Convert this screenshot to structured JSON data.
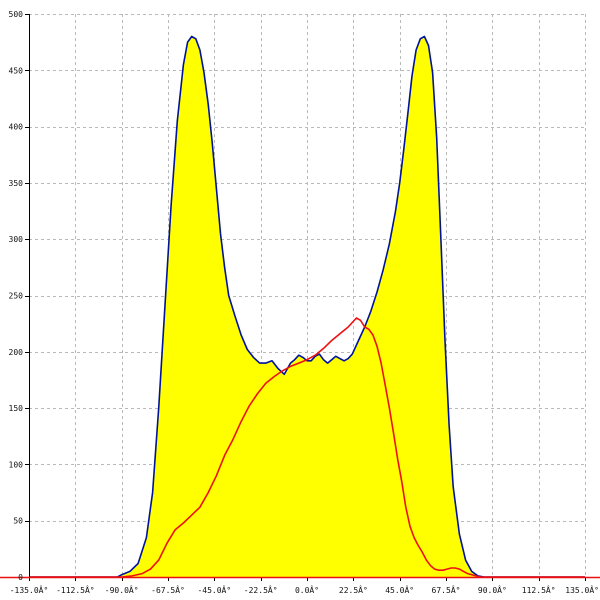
{
  "chart_data": {
    "type": "area",
    "title": "",
    "xlabel": "",
    "ylabel": "",
    "xlim": [
      -135,
      135
    ],
    "ylim": [
      0,
      500
    ],
    "grid": true,
    "legend": "none",
    "x_ticks": [
      {
        "value": -135,
        "label": "-135.0Â°"
      },
      {
        "value": -112.5,
        "label": "-112.5Â°"
      },
      {
        "value": -90,
        "label": "-90.0Â°"
      },
      {
        "value": -67.5,
        "label": "-67.5Â°"
      },
      {
        "value": -45,
        "label": "-45.0Â°"
      },
      {
        "value": -22.5,
        "label": "-22.5Â°"
      },
      {
        "value": 0,
        "label": "0.0Â°"
      },
      {
        "value": 22.5,
        "label": "22.5Â°"
      },
      {
        "value": 45,
        "label": "45.0Â°"
      },
      {
        "value": 67.5,
        "label": "67.5Â°"
      },
      {
        "value": 90,
        "label": "90.0Â°"
      },
      {
        "value": 112.5,
        "label": "112.5Â°"
      },
      {
        "value": 135,
        "label": "135.0Â°"
      }
    ],
    "y_ticks": [
      {
        "value": 0,
        "label": "0"
      },
      {
        "value": 50,
        "label": "50"
      },
      {
        "value": 100,
        "label": "100"
      },
      {
        "value": 150,
        "label": "150"
      },
      {
        "value": 200,
        "label": "200"
      },
      {
        "value": 250,
        "label": "250"
      },
      {
        "value": 300,
        "label": "300"
      },
      {
        "value": 350,
        "label": "350"
      },
      {
        "value": 400,
        "label": "400"
      },
      {
        "value": 450,
        "label": "450"
      },
      {
        "value": 500,
        "label": "500"
      }
    ],
    "series": [
      {
        "color": "#00139c",
        "fill": "#ffff00",
        "filled": true,
        "x": [
          -135,
          -92,
          -90,
          -86,
          -82,
          -78,
          -75,
          -72,
          -69,
          -66,
          -63,
          -60,
          -58,
          -56,
          -54,
          -52,
          -50,
          -48,
          -46,
          -44,
          -42,
          -40,
          -38,
          -35,
          -32,
          -29,
          -26,
          -23,
          -20,
          -17,
          -14,
          -11,
          -8,
          -6,
          -4,
          -2,
          0,
          2,
          4,
          6,
          8,
          10,
          12,
          14,
          16,
          18,
          20,
          22,
          25,
          28,
          31,
          34,
          37,
          40,
          43,
          45,
          47,
          49,
          51,
          53,
          55,
          57,
          59,
          61,
          63,
          65,
          67,
          69,
          71,
          74,
          77,
          80,
          83,
          86,
          89,
          92,
          135
        ],
        "y": [
          0,
          0,
          2,
          5,
          12,
          35,
          75,
          150,
          240,
          330,
          405,
          455,
          475,
          480,
          478,
          468,
          448,
          420,
          385,
          345,
          305,
          275,
          250,
          232,
          215,
          202,
          195,
          190,
          190,
          192,
          185,
          180,
          190,
          193,
          197,
          195,
          192,
          192,
          196,
          198,
          193,
          190,
          193,
          196,
          194,
          192,
          194,
          198,
          210,
          222,
          236,
          253,
          273,
          296,
          325,
          350,
          380,
          412,
          445,
          468,
          478,
          480,
          472,
          448,
          390,
          300,
          210,
          135,
          80,
          38,
          15,
          5,
          1,
          0,
          0,
          0,
          0
        ]
      },
      {
        "color": "#ee1111",
        "filled": false,
        "x": [
          -135,
          -90,
          -85,
          -80,
          -76,
          -72,
          -68,
          -64,
          -60,
          -56,
          -52,
          -48,
          -44,
          -40,
          -36,
          -32,
          -28,
          -24,
          -20,
          -16,
          -12,
          -8,
          -4,
          0,
          4,
          8,
          12,
          16,
          20,
          22,
          24,
          26,
          28,
          30,
          32,
          34,
          36,
          38,
          40,
          42,
          44,
          46,
          48,
          50,
          52,
          54,
          56,
          58,
          60,
          62,
          64,
          66,
          68,
          70,
          72,
          74,
          76,
          78,
          80,
          82,
          84,
          86,
          88,
          90,
          135
        ],
        "y": [
          0,
          0,
          1,
          3,
          7,
          15,
          30,
          42,
          48,
          55,
          62,
          75,
          90,
          108,
          122,
          138,
          152,
          163,
          172,
          178,
          183,
          187,
          190,
          193,
          197,
          203,
          210,
          216,
          222,
          226,
          230,
          228,
          222,
          220,
          215,
          205,
          190,
          170,
          150,
          128,
          105,
          85,
          62,
          45,
          35,
          28,
          22,
          15,
          10,
          7,
          6,
          6,
          7,
          8,
          8,
          7,
          5,
          3,
          2,
          1,
          0,
          0,
          0,
          0,
          0
        ]
      }
    ]
  }
}
